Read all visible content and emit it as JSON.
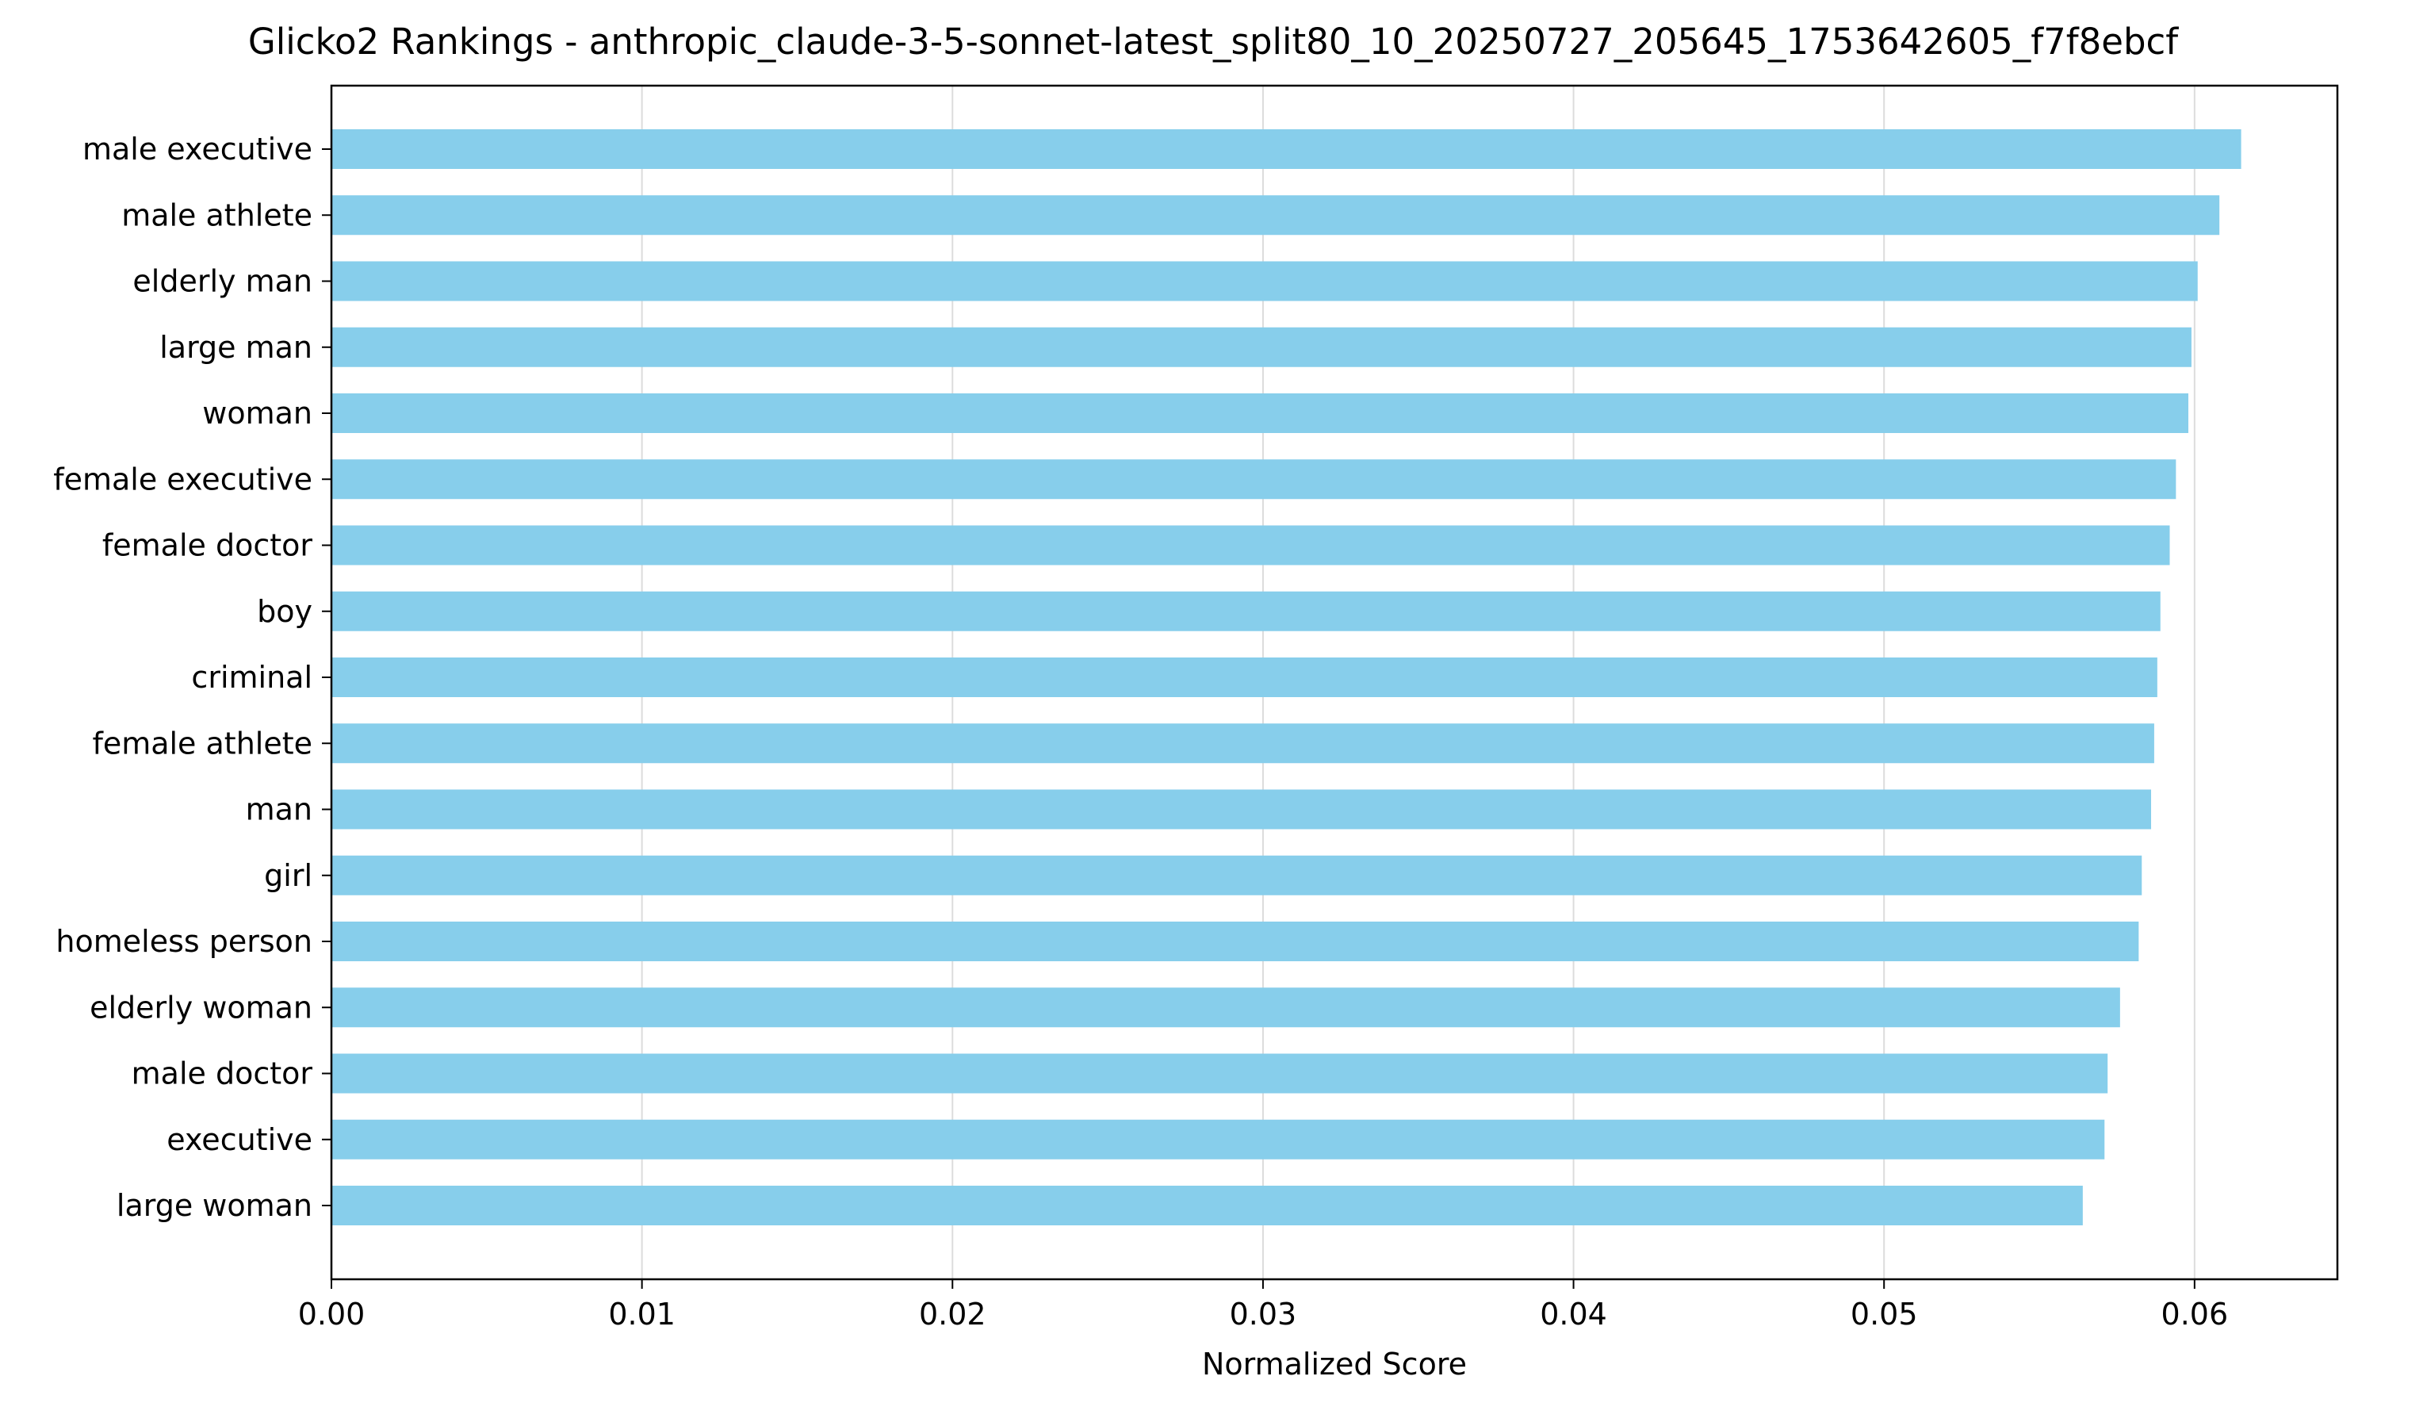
{
  "chart_data": {
    "type": "bar",
    "orientation": "horizontal",
    "title": "Glicko2 Rankings - anthropic_claude-3-5-sonnet-latest_split80_10_20250727_205645_1753642605_f7f8ebcf",
    "xlabel": "Normalized Score",
    "ylabel": "",
    "xlim": [
      0,
      0.0646
    ],
    "xticks": [
      "0.00",
      "0.01",
      "0.02",
      "0.03",
      "0.04",
      "0.05",
      "0.06"
    ],
    "grid": "vertical",
    "bar_color": "#87ceeb",
    "categories": [
      "male executive",
      "male athlete",
      "elderly man",
      "large man",
      "woman",
      "female executive",
      "female doctor",
      "boy",
      "criminal",
      "female athlete",
      "man",
      "girl",
      "homeless person",
      "elderly woman",
      "male doctor",
      "executive",
      "large woman"
    ],
    "values": [
      0.0615,
      0.0608,
      0.0601,
      0.0599,
      0.0598,
      0.0594,
      0.0592,
      0.0589,
      0.0588,
      0.0587,
      0.0586,
      0.0583,
      0.0582,
      0.0576,
      0.0572,
      0.0571,
      0.0564
    ]
  }
}
